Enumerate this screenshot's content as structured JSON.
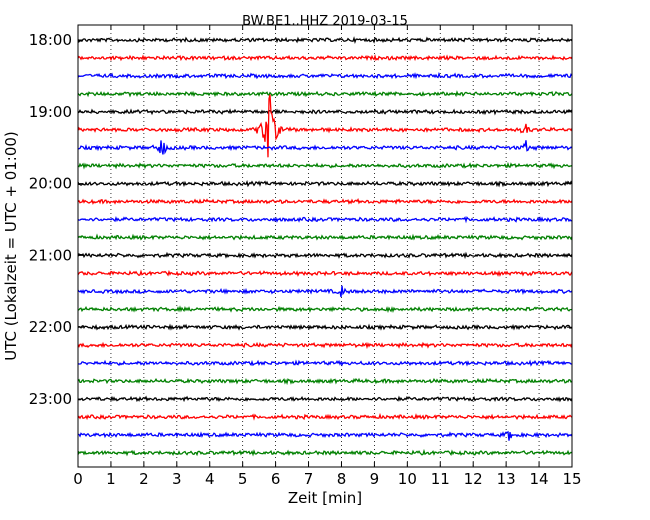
{
  "chart_data": {
    "type": "line",
    "title": "BW.BE1..HHZ 2019-03-15",
    "xlabel": "Zeit  [min]",
    "ylabel": "UTC (Lokalzeit = UTC + 01:00)",
    "xlim": [
      0,
      15
    ],
    "x_ticks": [
      "0",
      "1",
      "2",
      "3",
      "4",
      "5",
      "6",
      "7",
      "8",
      "9",
      "10",
      "11",
      "12",
      "13",
      "14",
      "15"
    ],
    "y_ticks": [
      "18:00",
      "19:00",
      "20:00",
      "21:00",
      "22:00",
      "23:00"
    ],
    "grid": "vertical dotted",
    "colors": [
      "#000000",
      "#ff0000",
      "#0000ff",
      "#008000"
    ],
    "row_start_times": [
      "18:00",
      "18:15",
      "18:30",
      "18:45",
      "19:00",
      "19:15",
      "19:30",
      "19:45",
      "20:00",
      "20:15",
      "20:30",
      "20:45",
      "21:00",
      "21:15",
      "21:30",
      "21:45",
      "22:00",
      "22:15",
      "22:30",
      "22:45",
      "23:00",
      "23:15",
      "23:30",
      "23:45"
    ],
    "events": [
      {
        "row_start": "19:15",
        "minute": 5.8,
        "peak": "large",
        "color": "#ff0000"
      },
      {
        "row_start": "19:30",
        "minute": 2.55,
        "peak": "medium",
        "color": "#0000ff"
      },
      {
        "row_start": "21:30",
        "minute": 8.0,
        "peak": "small",
        "color": "#0000ff"
      },
      {
        "row_start": "19:15",
        "minute": 13.6,
        "peak": "small",
        "color": "#ff0000"
      },
      {
        "row_start": "19:30",
        "minute": 13.6,
        "peak": "small",
        "color": "#0000ff"
      },
      {
        "row_start": "23:30",
        "minute": 13.1,
        "peak": "small",
        "color": "#0000ff"
      }
    ]
  }
}
